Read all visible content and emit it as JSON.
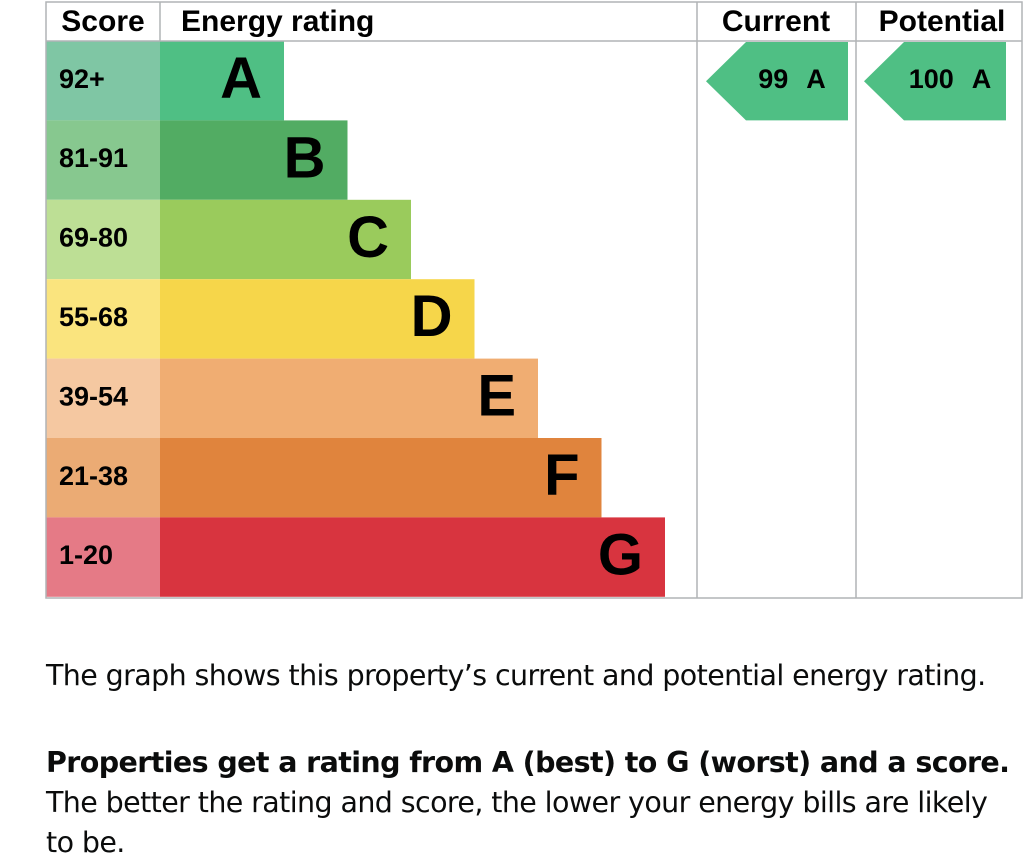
{
  "rating_graph": {
    "headers": {
      "score": "Score",
      "rating": "Energy rating",
      "current": "Current",
      "potential": "Potential"
    },
    "bands": [
      {
        "score": "92+",
        "letter": "A",
        "color": "#4fbf84",
        "score_color": "#7fc6a4"
      },
      {
        "score": "81-91",
        "letter": "B",
        "color": "#52ac63",
        "score_color": "#87c88f"
      },
      {
        "score": "69-80",
        "letter": "C",
        "color": "#9acb5c",
        "score_color": "#bddf95"
      },
      {
        "score": "55-68",
        "letter": "D",
        "color": "#f6d64a",
        "score_color": "#fae47e"
      },
      {
        "score": "39-54",
        "letter": "E",
        "color": "#f0ad72",
        "score_color": "#f5c8a1"
      },
      {
        "score": "21-38",
        "letter": "F",
        "color": "#e0843d",
        "score_color": "#ebab74"
      },
      {
        "score": "1-20",
        "letter": "G",
        "color": "#d8343f",
        "score_color": "#e57a86"
      }
    ],
    "current": {
      "score": 99,
      "letter": "A"
    },
    "potential": {
      "score": 100,
      "letter": "A"
    }
  },
  "description": "The graph shows this property’s current and potential energy rating.",
  "note": {
    "bold": "Properties get a rating from A (best) to G (worst) and a score.",
    "text": " The better the rating and score, the lower your energy bills are likely to be."
  }
}
